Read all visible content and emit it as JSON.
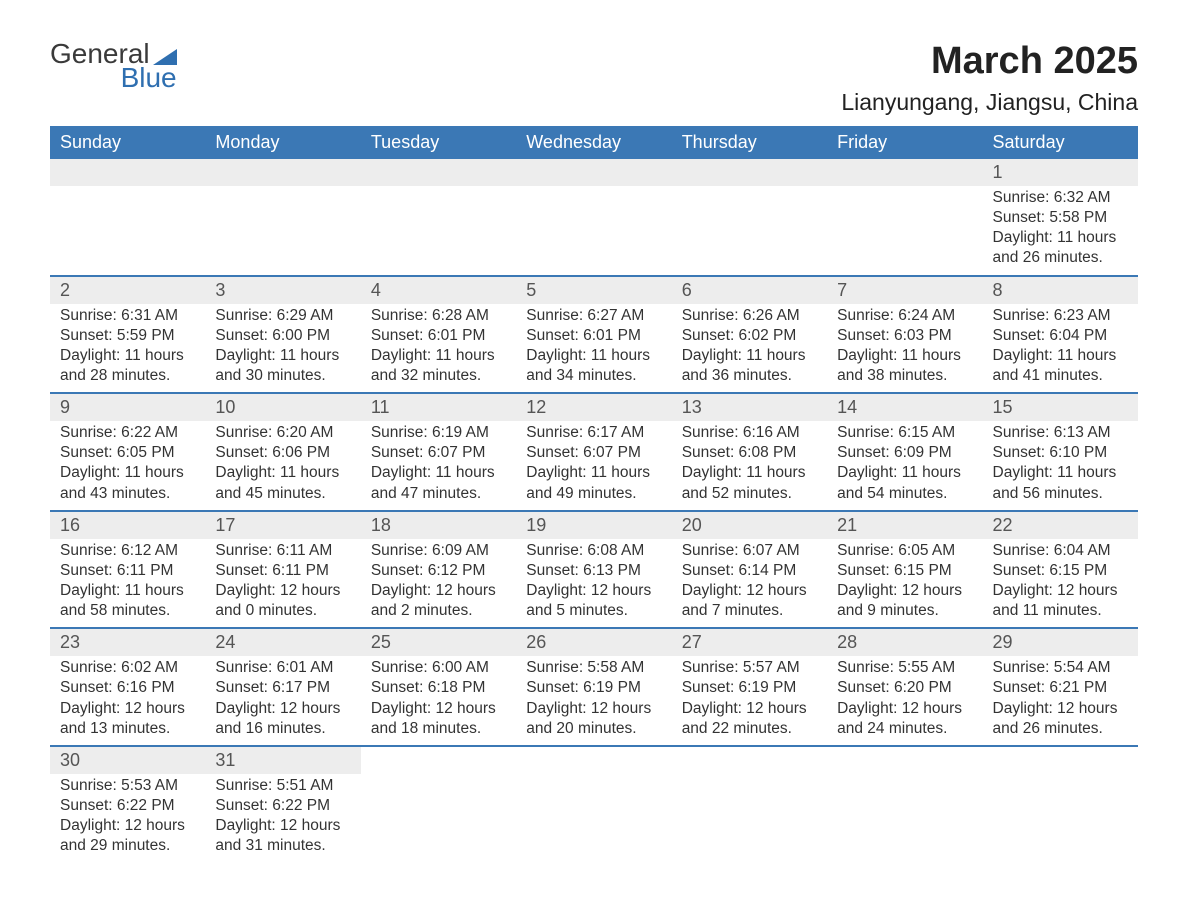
{
  "brand": {
    "word1": "General",
    "word2": "Blue"
  },
  "title": "March 2025",
  "location": "Lianyungang, Jiangsu, China",
  "colors": {
    "header_bg": "#3b78b5",
    "header_text": "#ffffff",
    "row_divider": "#3b78b5",
    "daynum_bg": "#ededed",
    "body_text": "#333333",
    "brand_blue": "#2f6fb0"
  },
  "typography": {
    "title_fontsize": 38,
    "location_fontsize": 23,
    "header_fontsize": 18,
    "cell_fontsize": 15.5
  },
  "layout": {
    "columns": 7,
    "weeks": 6
  },
  "weekdays": [
    "Sunday",
    "Monday",
    "Tuesday",
    "Wednesday",
    "Thursday",
    "Friday",
    "Saturday"
  ],
  "weeks": [
    [
      null,
      null,
      null,
      null,
      null,
      null,
      {
        "n": "1",
        "sr": "Sunrise: 6:32 AM",
        "ss": "Sunset: 5:58 PM",
        "d1": "Daylight: 11 hours",
        "d2": "and 26 minutes."
      }
    ],
    [
      {
        "n": "2",
        "sr": "Sunrise: 6:31 AM",
        "ss": "Sunset: 5:59 PM",
        "d1": "Daylight: 11 hours",
        "d2": "and 28 minutes."
      },
      {
        "n": "3",
        "sr": "Sunrise: 6:29 AM",
        "ss": "Sunset: 6:00 PM",
        "d1": "Daylight: 11 hours",
        "d2": "and 30 minutes."
      },
      {
        "n": "4",
        "sr": "Sunrise: 6:28 AM",
        "ss": "Sunset: 6:01 PM",
        "d1": "Daylight: 11 hours",
        "d2": "and 32 minutes."
      },
      {
        "n": "5",
        "sr": "Sunrise: 6:27 AM",
        "ss": "Sunset: 6:01 PM",
        "d1": "Daylight: 11 hours",
        "d2": "and 34 minutes."
      },
      {
        "n": "6",
        "sr": "Sunrise: 6:26 AM",
        "ss": "Sunset: 6:02 PM",
        "d1": "Daylight: 11 hours",
        "d2": "and 36 minutes."
      },
      {
        "n": "7",
        "sr": "Sunrise: 6:24 AM",
        "ss": "Sunset: 6:03 PM",
        "d1": "Daylight: 11 hours",
        "d2": "and 38 minutes."
      },
      {
        "n": "8",
        "sr": "Sunrise: 6:23 AM",
        "ss": "Sunset: 6:04 PM",
        "d1": "Daylight: 11 hours",
        "d2": "and 41 minutes."
      }
    ],
    [
      {
        "n": "9",
        "sr": "Sunrise: 6:22 AM",
        "ss": "Sunset: 6:05 PM",
        "d1": "Daylight: 11 hours",
        "d2": "and 43 minutes."
      },
      {
        "n": "10",
        "sr": "Sunrise: 6:20 AM",
        "ss": "Sunset: 6:06 PM",
        "d1": "Daylight: 11 hours",
        "d2": "and 45 minutes."
      },
      {
        "n": "11",
        "sr": "Sunrise: 6:19 AM",
        "ss": "Sunset: 6:07 PM",
        "d1": "Daylight: 11 hours",
        "d2": "and 47 minutes."
      },
      {
        "n": "12",
        "sr": "Sunrise: 6:17 AM",
        "ss": "Sunset: 6:07 PM",
        "d1": "Daylight: 11 hours",
        "d2": "and 49 minutes."
      },
      {
        "n": "13",
        "sr": "Sunrise: 6:16 AM",
        "ss": "Sunset: 6:08 PM",
        "d1": "Daylight: 11 hours",
        "d2": "and 52 minutes."
      },
      {
        "n": "14",
        "sr": "Sunrise: 6:15 AM",
        "ss": "Sunset: 6:09 PM",
        "d1": "Daylight: 11 hours",
        "d2": "and 54 minutes."
      },
      {
        "n": "15",
        "sr": "Sunrise: 6:13 AM",
        "ss": "Sunset: 6:10 PM",
        "d1": "Daylight: 11 hours",
        "d2": "and 56 minutes."
      }
    ],
    [
      {
        "n": "16",
        "sr": "Sunrise: 6:12 AM",
        "ss": "Sunset: 6:11 PM",
        "d1": "Daylight: 11 hours",
        "d2": "and 58 minutes."
      },
      {
        "n": "17",
        "sr": "Sunrise: 6:11 AM",
        "ss": "Sunset: 6:11 PM",
        "d1": "Daylight: 12 hours",
        "d2": "and 0 minutes."
      },
      {
        "n": "18",
        "sr": "Sunrise: 6:09 AM",
        "ss": "Sunset: 6:12 PM",
        "d1": "Daylight: 12 hours",
        "d2": "and 2 minutes."
      },
      {
        "n": "19",
        "sr": "Sunrise: 6:08 AM",
        "ss": "Sunset: 6:13 PM",
        "d1": "Daylight: 12 hours",
        "d2": "and 5 minutes."
      },
      {
        "n": "20",
        "sr": "Sunrise: 6:07 AM",
        "ss": "Sunset: 6:14 PM",
        "d1": "Daylight: 12 hours",
        "d2": "and 7 minutes."
      },
      {
        "n": "21",
        "sr": "Sunrise: 6:05 AM",
        "ss": "Sunset: 6:15 PM",
        "d1": "Daylight: 12 hours",
        "d2": "and 9 minutes."
      },
      {
        "n": "22",
        "sr": "Sunrise: 6:04 AM",
        "ss": "Sunset: 6:15 PM",
        "d1": "Daylight: 12 hours",
        "d2": "and 11 minutes."
      }
    ],
    [
      {
        "n": "23",
        "sr": "Sunrise: 6:02 AM",
        "ss": "Sunset: 6:16 PM",
        "d1": "Daylight: 12 hours",
        "d2": "and 13 minutes."
      },
      {
        "n": "24",
        "sr": "Sunrise: 6:01 AM",
        "ss": "Sunset: 6:17 PM",
        "d1": "Daylight: 12 hours",
        "d2": "and 16 minutes."
      },
      {
        "n": "25",
        "sr": "Sunrise: 6:00 AM",
        "ss": "Sunset: 6:18 PM",
        "d1": "Daylight: 12 hours",
        "d2": "and 18 minutes."
      },
      {
        "n": "26",
        "sr": "Sunrise: 5:58 AM",
        "ss": "Sunset: 6:19 PM",
        "d1": "Daylight: 12 hours",
        "d2": "and 20 minutes."
      },
      {
        "n": "27",
        "sr": "Sunrise: 5:57 AM",
        "ss": "Sunset: 6:19 PM",
        "d1": "Daylight: 12 hours",
        "d2": "and 22 minutes."
      },
      {
        "n": "28",
        "sr": "Sunrise: 5:55 AM",
        "ss": "Sunset: 6:20 PM",
        "d1": "Daylight: 12 hours",
        "d2": "and 24 minutes."
      },
      {
        "n": "29",
        "sr": "Sunrise: 5:54 AM",
        "ss": "Sunset: 6:21 PM",
        "d1": "Daylight: 12 hours",
        "d2": "and 26 minutes."
      }
    ],
    [
      {
        "n": "30",
        "sr": "Sunrise: 5:53 AM",
        "ss": "Sunset: 6:22 PM",
        "d1": "Daylight: 12 hours",
        "d2": "and 29 minutes."
      },
      {
        "n": "31",
        "sr": "Sunrise: 5:51 AM",
        "ss": "Sunset: 6:22 PM",
        "d1": "Daylight: 12 hours",
        "d2": "and 31 minutes."
      },
      null,
      null,
      null,
      null,
      null
    ]
  ]
}
